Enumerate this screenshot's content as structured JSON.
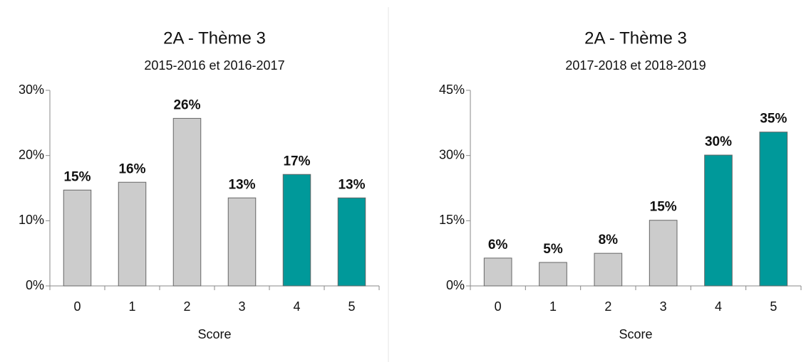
{
  "chart_data": [
    {
      "type": "bar",
      "title": "2A - Thème 3",
      "subtitle": "2015-2016 et 2016-2017",
      "x_label": "Score",
      "categories": [
        "0",
        "1",
        "2",
        "3",
        "4",
        "5"
      ],
      "values": [
        14.7,
        15.9,
        25.7,
        13.5,
        17.1,
        13.5
      ],
      "value_labels": [
        "15%",
        "16%",
        "26%",
        "13%",
        "17%",
        "13%"
      ],
      "colors": [
        "#cccccc",
        "#cccccc",
        "#cccccc",
        "#cccccc",
        "#00999a",
        "#00999a"
      ],
      "ylim": [
        0,
        30
      ],
      "yticks": [
        {
          "value": 0,
          "label": "0%"
        },
        {
          "value": 10,
          "label": "10%"
        },
        {
          "value": 20,
          "label": "20%"
        },
        {
          "value": 30,
          "label": "30%"
        }
      ]
    },
    {
      "type": "bar",
      "title": "2A - Thème 3",
      "subtitle": "2017-2018 et 2018-2019",
      "x_label": "Score",
      "categories": [
        "0",
        "1",
        "2",
        "3",
        "4",
        "5"
      ],
      "values": [
        6.4,
        5.4,
        7.5,
        15.1,
        30.1,
        35.4
      ],
      "value_labels": [
        "6%",
        "5%",
        "8%",
        "15%",
        "30%",
        "35%"
      ],
      "colors": [
        "#cccccc",
        "#cccccc",
        "#cccccc",
        "#cccccc",
        "#00999a",
        "#00999a"
      ],
      "ylim": [
        0,
        45
      ],
      "yticks": [
        {
          "value": 0,
          "label": "0%"
        },
        {
          "value": 15,
          "label": "15%"
        },
        {
          "value": 30,
          "label": "30%"
        },
        {
          "value": 45,
          "label": "45%"
        }
      ]
    }
  ]
}
